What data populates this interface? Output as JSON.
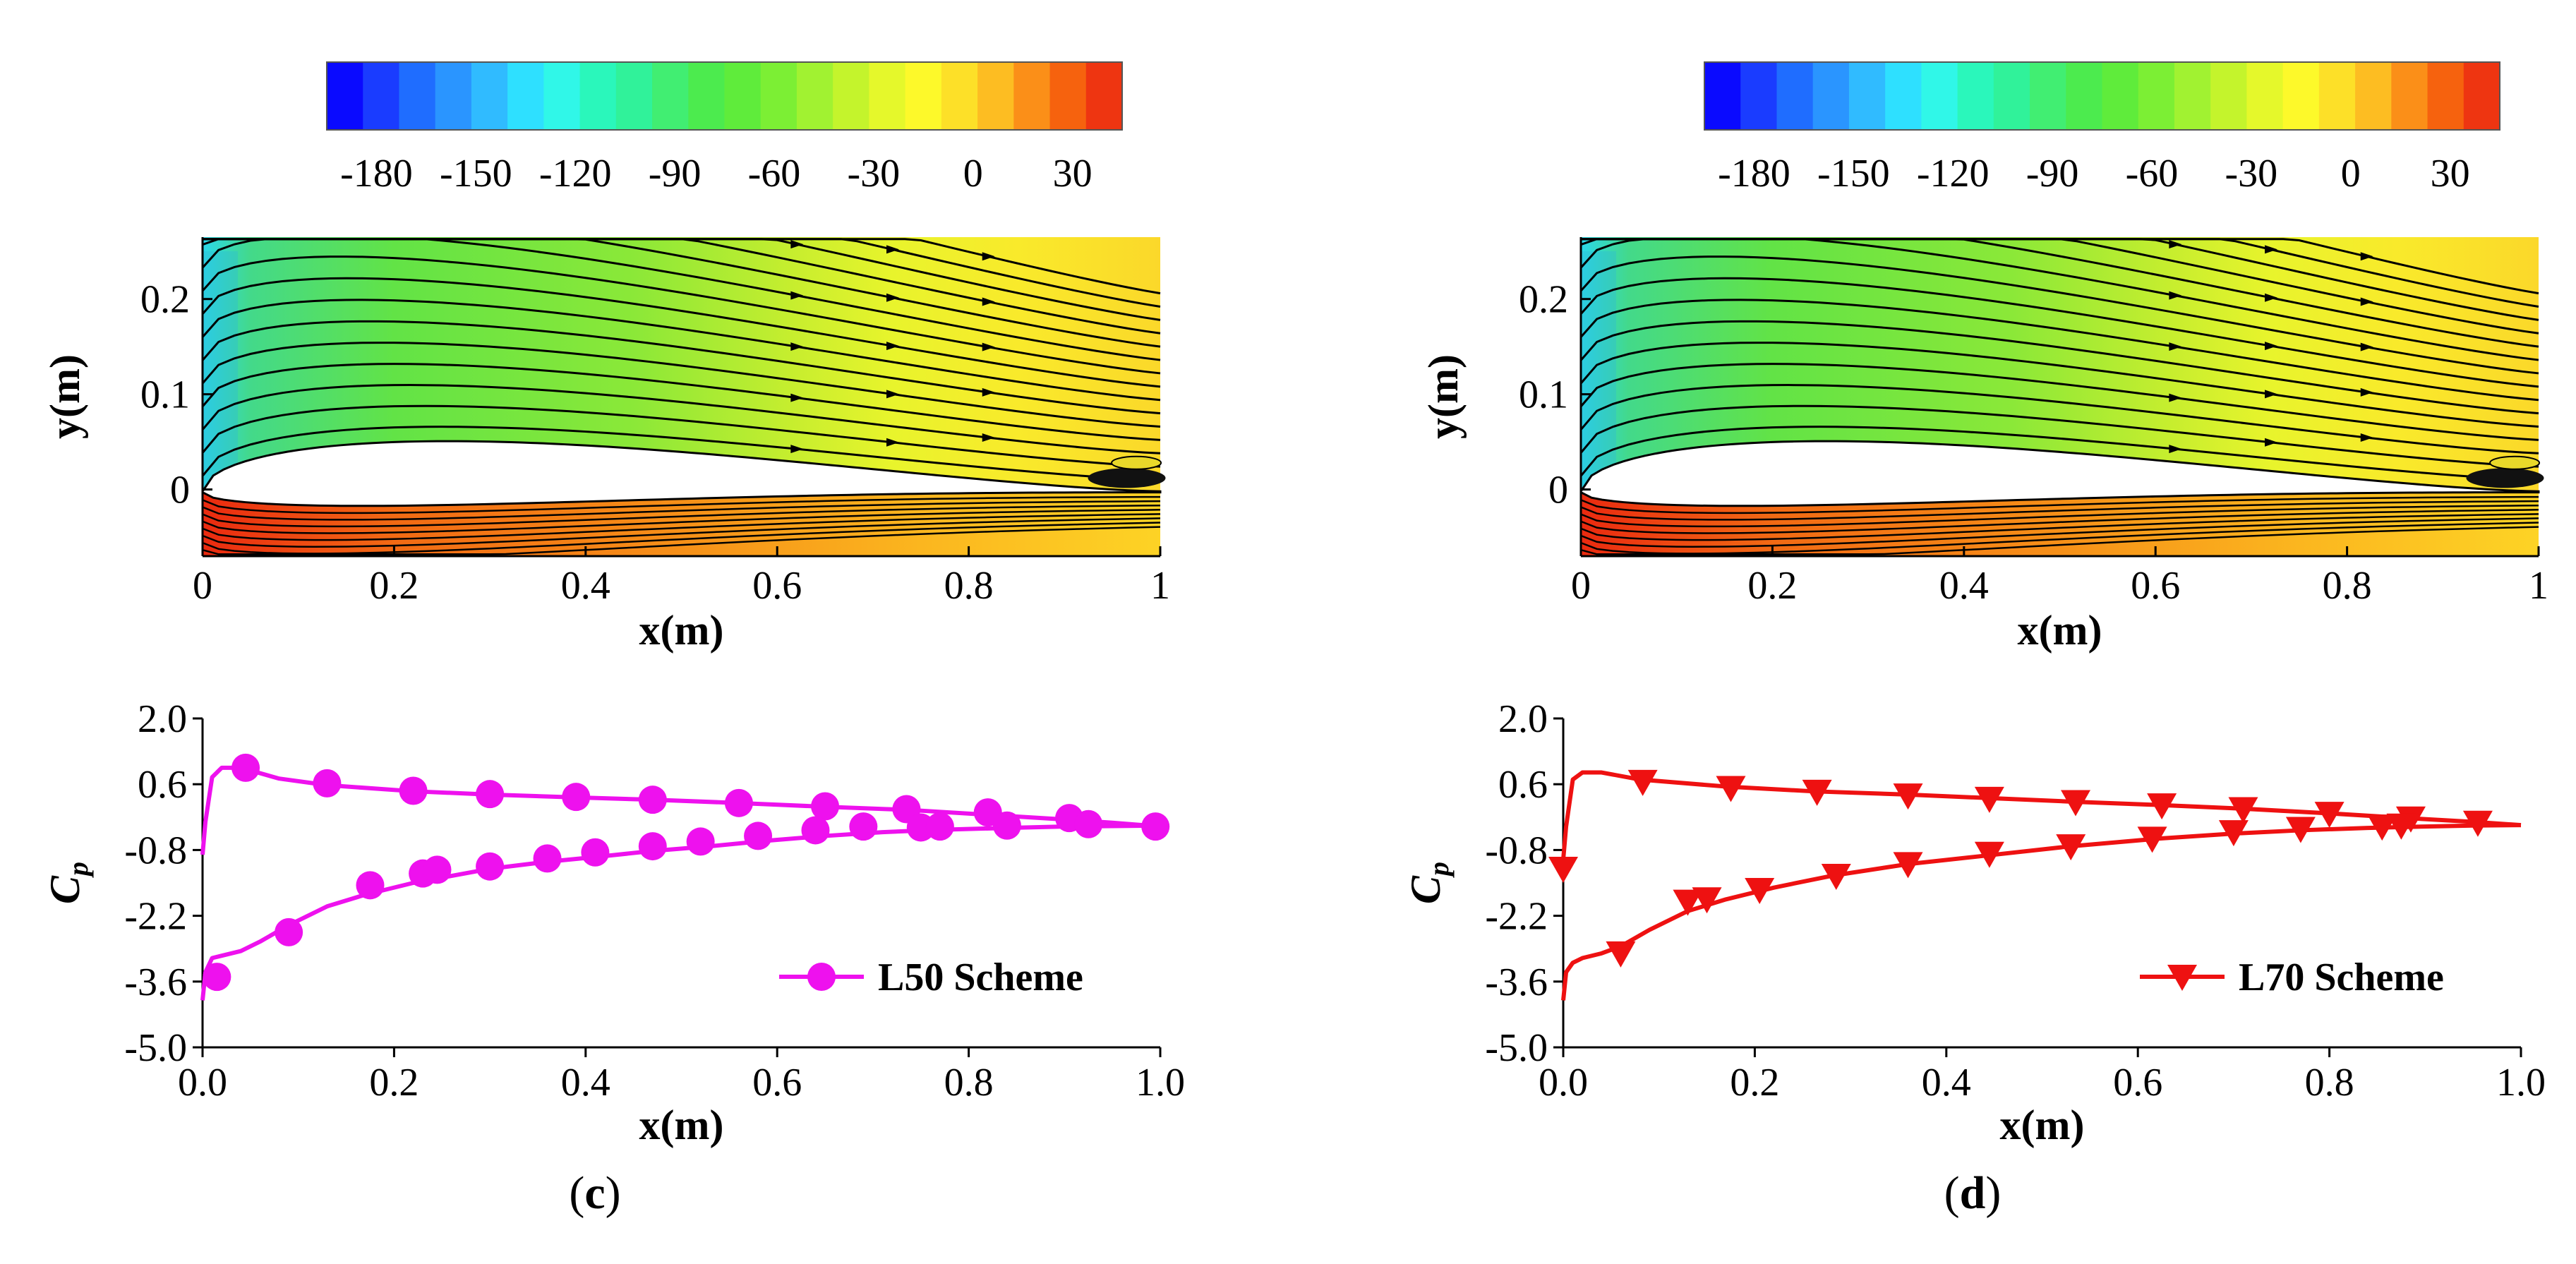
{
  "colorbar": {
    "ticks": [
      "-180",
      "-150",
      "-120",
      "-90",
      "-60",
      "-30",
      "0",
      "30"
    ],
    "range": [
      -195,
      45
    ],
    "levels": 22,
    "colors": [
      "#0a0aff",
      "#1a3cff",
      "#1f6dff",
      "#2a95ff",
      "#30bbff",
      "#2ee0ff",
      "#30f7e8",
      "#2af7bb",
      "#30f29a",
      "#41ee72",
      "#4ceb4e",
      "#5fec3b",
      "#7cef34",
      "#a1f231",
      "#c4f42c",
      "#e5f82b",
      "#fdf92a",
      "#fde028",
      "#fdbd22",
      "#fb8f18",
      "#f6620e",
      "#ee3511"
    ]
  },
  "panels": [
    {
      "id": "c",
      "caption_open": "(",
      "caption_letter": "c",
      "caption_close": ")",
      "contour": {
        "xlabel": "x(m)",
        "ylabel": "y(m)",
        "xticks": [
          "0",
          "0.2",
          "0.4",
          "0.6",
          "0.8",
          "1"
        ],
        "yticks": [
          "0",
          "0.1",
          "0.2"
        ],
        "xlim": [
          0,
          1
        ],
        "ylim": [
          -0.07,
          0.265
        ]
      },
      "cp": {
        "type": "line",
        "xlabel": "x(m)",
        "ylabel_main": "C",
        "ylabel_sub": "p",
        "xticks": [
          "0.0",
          "0.2",
          "0.4",
          "0.6",
          "0.8",
          "1.0"
        ],
        "yticks": [
          "2.0",
          "0.6",
          "-0.8",
          "-2.2",
          "-3.6",
          "-5.0"
        ],
        "xlim": [
          0,
          1
        ],
        "ylim": [
          -5,
          2
        ],
        "color": "#ee11ee",
        "marker": "circle",
        "legend": "L50 Scheme",
        "upper_line_x": [
          0.0,
          0.003,
          0.01,
          0.02,
          0.04,
          0.08,
          0.13,
          0.22,
          0.3,
          0.39,
          0.47,
          0.56,
          0.65,
          0.74,
          0.82,
          0.9,
          0.95,
          1.0
        ],
        "upper_line_y": [
          -0.9,
          -0.2,
          0.75,
          0.95,
          0.95,
          0.72,
          0.58,
          0.45,
          0.38,
          0.32,
          0.27,
          0.2,
          0.12,
          0.05,
          -0.05,
          -0.15,
          -0.22,
          -0.3
        ],
        "lower_line_x": [
          0.0,
          0.003,
          0.01,
          0.02,
          0.04,
          0.06,
          0.09,
          0.13,
          0.17,
          0.22,
          0.26,
          0.3,
          0.36,
          0.41,
          0.47,
          0.53,
          0.59,
          0.65,
          0.71,
          0.77,
          0.84,
          0.9,
          0.95,
          1.0
        ],
        "lower_line_y": [
          -4.0,
          -3.4,
          -3.1,
          -3.05,
          -2.95,
          -2.75,
          -2.4,
          -2.0,
          -1.75,
          -1.5,
          -1.35,
          -1.2,
          -1.05,
          -0.95,
          -0.82,
          -0.72,
          -0.6,
          -0.5,
          -0.42,
          -0.37,
          -0.33,
          -0.3,
          -0.29,
          -0.28
        ],
        "upper_markers_x": [
          0.045,
          0.13,
          0.22,
          0.3,
          0.39,
          0.47,
          0.56,
          0.65,
          0.735,
          0.82,
          0.905,
          0.995
        ],
        "upper_markers_y": [
          0.95,
          0.62,
          0.46,
          0.39,
          0.33,
          0.27,
          0.2,
          0.13,
          0.07,
          0.0,
          -0.12,
          -0.3
        ],
        "lower_markers_x": [
          0.015,
          0.09,
          0.175,
          0.23,
          0.245,
          0.3,
          0.36,
          0.41,
          0.47,
          0.52,
          0.58,
          0.64,
          0.69,
          0.75,
          0.77,
          0.84,
          0.925
        ],
        "lower_markers_y": [
          -3.5,
          -2.55,
          -1.55,
          -1.3,
          -1.22,
          -1.15,
          -0.98,
          -0.85,
          -0.72,
          -0.62,
          -0.5,
          -0.38,
          -0.3,
          -0.32,
          -0.3,
          -0.28,
          -0.25
        ]
      }
    },
    {
      "id": "d",
      "caption_open": "(",
      "caption_letter": "d",
      "caption_close": ")",
      "contour": {
        "xlabel": "x(m)",
        "ylabel": "y(m)",
        "xticks": [
          "0",
          "0.2",
          "0.4",
          "0.6",
          "0.8",
          "1"
        ],
        "yticks": [
          "0",
          "0.1",
          "0.2"
        ],
        "xlim": [
          0,
          1
        ],
        "ylim": [
          -0.07,
          0.265
        ]
      },
      "cp": {
        "type": "line",
        "xlabel": "x(m)",
        "ylabel_main": "C",
        "ylabel_sub": "p",
        "xticks": [
          "0.0",
          "0.2",
          "0.4",
          "0.6",
          "0.8",
          "1.0"
        ],
        "yticks": [
          "2.0",
          "0.6",
          "-0.8",
          "-2.2",
          "-3.6",
          "-5.0"
        ],
        "xlim": [
          0,
          1
        ],
        "ylim": [
          -5,
          2
        ],
        "color": "#ee1111",
        "marker": "triangle-down",
        "legend": "L70 Scheme",
        "upper_line_x": [
          0.0,
          0.003,
          0.01,
          0.02,
          0.04,
          0.08,
          0.17,
          0.26,
          0.36,
          0.45,
          0.53,
          0.62,
          0.71,
          0.8,
          0.88,
          0.95,
          1.0
        ],
        "upper_line_y": [
          -1.0,
          -0.3,
          0.7,
          0.85,
          0.85,
          0.7,
          0.55,
          0.45,
          0.38,
          0.3,
          0.23,
          0.16,
          0.08,
          -0.02,
          -0.12,
          -0.2,
          -0.27
        ],
        "lower_line_x": [
          0.0,
          0.003,
          0.01,
          0.02,
          0.04,
          0.06,
          0.09,
          0.13,
          0.17,
          0.22,
          0.28,
          0.36,
          0.45,
          0.53,
          0.62,
          0.7,
          0.77,
          0.84,
          0.9,
          0.95,
          1.0
        ],
        "lower_line_y": [
          -4.0,
          -3.4,
          -3.2,
          -3.1,
          -3.0,
          -2.85,
          -2.5,
          -2.1,
          -1.85,
          -1.6,
          -1.35,
          -1.1,
          -0.9,
          -0.72,
          -0.56,
          -0.45,
          -0.38,
          -0.33,
          -0.3,
          -0.28,
          -0.27
        ],
        "upper_markers_x": [
          0.083,
          0.175,
          0.265,
          0.36,
          0.445,
          0.535,
          0.625,
          0.71,
          0.8,
          0.885,
          0.955
        ],
        "upper_markers_y": [
          0.65,
          0.52,
          0.44,
          0.36,
          0.29,
          0.22,
          0.15,
          0.07,
          -0.03,
          -0.13,
          -0.22
        ],
        "lower_markers_x": [
          0.0,
          0.06,
          0.13,
          0.15,
          0.205,
          0.285,
          0.36,
          0.445,
          0.53,
          0.615,
          0.7,
          0.77,
          0.855,
          0.875
        ],
        "lower_markers_y": [
          -1.2,
          -3.0,
          -1.9,
          -1.85,
          -1.65,
          -1.35,
          -1.1,
          -0.88,
          -0.72,
          -0.56,
          -0.42,
          -0.35,
          -0.3,
          -0.28
        ]
      }
    }
  ]
}
